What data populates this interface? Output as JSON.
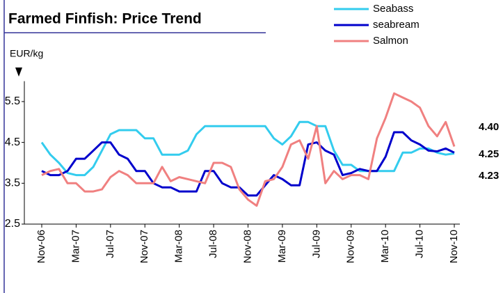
{
  "chart_data": {
    "type": "line",
    "title": "Farmed Finfish: Price Trend",
    "y_axis_label": "EUR/kg",
    "categories": [
      "Nov-06",
      null,
      null,
      null,
      "Mar-07",
      null,
      null,
      null,
      "Jul-07",
      null,
      null,
      null,
      "Nov-07",
      null,
      null,
      null,
      "Mar-08",
      null,
      null,
      null,
      "Jul-08",
      null,
      null,
      null,
      "Nov-08",
      null,
      null,
      null,
      "Mar-09",
      null,
      null,
      null,
      "Jul-09",
      null,
      null,
      null,
      "Nov-09",
      null,
      null,
      null,
      "Mar-10",
      null,
      null,
      null,
      "Jul-10",
      null,
      null,
      null,
      "Nov-10"
    ],
    "series": [
      {
        "name": "Seabass",
        "color": "#33ccee",
        "values": [
          4.5,
          4.2,
          4.0,
          3.75,
          3.7,
          3.7,
          3.9,
          4.3,
          4.7,
          4.8,
          4.8,
          4.8,
          4.6,
          4.6,
          4.2,
          4.2,
          4.2,
          4.3,
          4.7,
          4.9,
          4.9,
          4.9,
          4.9,
          4.9,
          4.9,
          4.9,
          4.9,
          4.6,
          4.45,
          4.65,
          5.0,
          5.0,
          4.9,
          4.9,
          4.3,
          3.95,
          3.95,
          3.8,
          3.8,
          3.8,
          3.8,
          3.8,
          4.25,
          4.25,
          4.35,
          4.35,
          4.25,
          4.2,
          4.23
        ]
      },
      {
        "name": "seabream",
        "color": "#0000cc",
        "values": [
          3.8,
          3.7,
          3.7,
          3.8,
          4.1,
          4.1,
          4.3,
          4.5,
          4.5,
          4.2,
          4.1,
          3.8,
          3.8,
          3.5,
          3.4,
          3.4,
          3.3,
          3.3,
          3.3,
          3.8,
          3.8,
          3.5,
          3.4,
          3.4,
          3.2,
          3.2,
          3.45,
          3.7,
          3.6,
          3.45,
          3.45,
          4.45,
          4.5,
          4.3,
          4.2,
          3.7,
          3.75,
          3.85,
          3.8,
          3.8,
          4.15,
          4.75,
          4.75,
          4.55,
          4.45,
          4.3,
          4.28,
          4.35,
          4.25
        ]
      },
      {
        "name": "Salmon",
        "color": "#f08080",
        "values": [
          3.7,
          3.8,
          3.85,
          3.5,
          3.5,
          3.3,
          3.3,
          3.35,
          3.65,
          3.8,
          3.7,
          3.5,
          3.5,
          3.5,
          3.9,
          3.55,
          3.65,
          3.6,
          3.55,
          3.5,
          4.0,
          4.0,
          3.9,
          3.35,
          3.1,
          2.95,
          3.55,
          3.6,
          3.9,
          4.45,
          4.55,
          4.1,
          4.9,
          3.5,
          3.8,
          3.6,
          3.7,
          3.7,
          3.6,
          4.6,
          5.1,
          5.7,
          5.6,
          5.5,
          5.35,
          4.9,
          4.65,
          5.0,
          4.4
        ]
      }
    ],
    "end_labels": [
      "4.40",
      "4.25",
      "4.23"
    ],
    "ylim": [
      2.5,
      6
    ],
    "yticks": [
      2.5,
      3.5,
      4.5,
      5.5
    ]
  }
}
